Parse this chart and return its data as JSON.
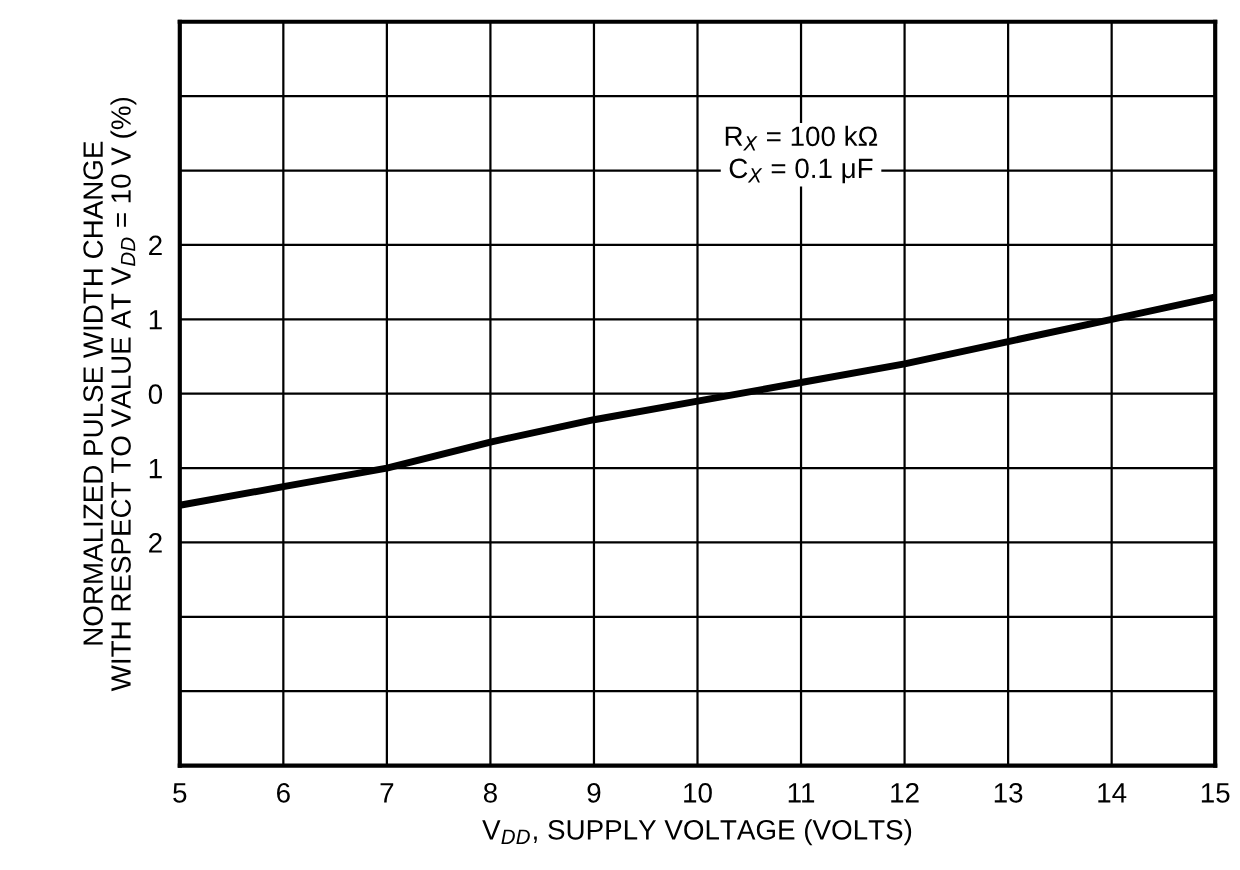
{
  "chart_data": {
    "type": "line",
    "xlabel": "V$_{DD}$, SUPPLY VOLTAGE (VOLTS)",
    "ylabel": "NORMALIZED PULSE WIDTH CHANGE\nWITH RESPECT TO VALUE AT V$_{DD}$ = 10 V (%)",
    "x": [
      5,
      6,
      7,
      8,
      9,
      10,
      11,
      12,
      13,
      14,
      15
    ],
    "series": [
      {
        "color": "#000000",
        "values": [
          -1.5,
          -1.25,
          -1.0,
          -0.65,
          -0.35,
          -0.1,
          0.15,
          0.4,
          0.7,
          1.0,
          1.3
        ]
      }
    ],
    "xlim": [
      5,
      15
    ],
    "xticks": [
      5,
      6,
      7,
      8,
      9,
      10,
      11,
      12,
      13,
      14,
      15
    ],
    "ylim": [
      -5,
      5
    ],
    "yticks": [
      {
        "value": -5,
        "label": null
      },
      {
        "value": -4,
        "label": null
      },
      {
        "value": -3,
        "label": null
      },
      {
        "value": -2,
        "label": "2"
      },
      {
        "value": -1,
        "label": "1"
      },
      0,
      {
        "value": 1,
        "label": "1"
      },
      2,
      {
        "value": 3,
        "label": null
      },
      {
        "value": 4,
        "label": null
      },
      {
        "value": 5,
        "label": null
      }
    ],
    "annotations": [
      "R$_{X}$ = 100 kΩ\nC$_{X}$ = 0.1 μF"
    ],
    "grid": true,
    "marker": "none",
    "line_style": "solid"
  }
}
